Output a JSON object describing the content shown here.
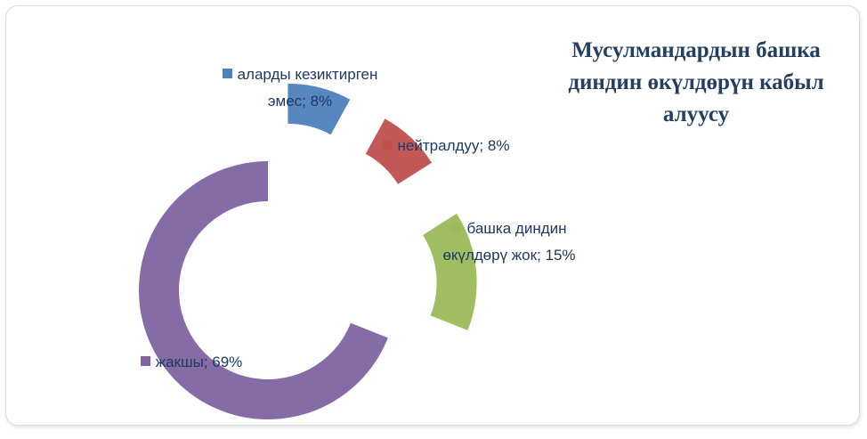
{
  "chart_data": {
    "type": "doughnut",
    "title": "Мусулмандардын башка диндин өкүлдөрүн кабыл алуусу",
    "categories": [
      "аларды кезиктирген эмес",
      "нейтралдуу",
      "башка диндин өкүлдөрү жок",
      "жакшы"
    ],
    "values": [
      8,
      8,
      15,
      69
    ],
    "value_labels": [
      "аларды кезиктирген эмес; 8%",
      "нейтралдуу; 8%",
      "башка диндин өкүлдөрү жок; 15%",
      "жакшы; 69%"
    ],
    "colors": [
      "#4f81bd",
      "#c0504d",
      "#9bbb59",
      "#8064a2"
    ]
  }
}
